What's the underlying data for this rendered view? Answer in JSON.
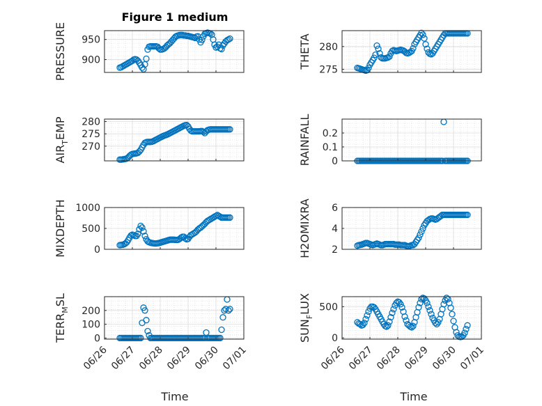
{
  "figure": {
    "title": "Figure 1 medium",
    "xlabel": "Time",
    "marker_color": "#0072BD",
    "x_ticks": [
      "06/26",
      "06/27",
      "06/28",
      "06/29",
      "06/30",
      "07/01"
    ]
  },
  "chart_data": [
    {
      "type": "scatter",
      "title": "Figure 1 medium",
      "ylabel": "PRESSURE",
      "ylim": [
        868,
        972
      ],
      "yticks": [
        900,
        950
      ],
      "xlim": [
        0,
        5
      ],
      "x": [
        0.55,
        0.6,
        0.65,
        0.7,
        0.75,
        0.8,
        0.85,
        0.9,
        0.95,
        1.0,
        1.05,
        1.1,
        1.15,
        1.2,
        1.25,
        1.3,
        1.35,
        1.4,
        1.45,
        1.5,
        1.55,
        1.6,
        1.65,
        1.7,
        1.75,
        1.8,
        1.85,
        1.9,
        1.95,
        2.0,
        2.05,
        2.1,
        2.15,
        2.2,
        2.25,
        2.3,
        2.35,
        2.4,
        2.45,
        2.5,
        2.55,
        2.6,
        2.65,
        2.7,
        2.75,
        2.8,
        2.85,
        2.9,
        2.95,
        3.0,
        3.05,
        3.1,
        3.15,
        3.2,
        3.25,
        3.3,
        3.35,
        3.4,
        3.45,
        3.5,
        3.55,
        3.6,
        3.65,
        3.7,
        3.75,
        3.8,
        3.85,
        3.9,
        3.95,
        4.0,
        4.05,
        4.1,
        4.15,
        4.2,
        4.25,
        4.3,
        4.35,
        4.4,
        4.45,
        4.5
      ],
      "y": [
        880,
        881,
        883,
        885,
        887,
        889,
        891,
        893,
        895,
        897,
        900,
        901,
        900,
        897,
        892,
        886,
        880,
        876,
        888,
        902,
        925,
        932,
        933,
        933,
        933,
        933,
        933,
        932,
        928,
        925,
        925,
        926,
        928,
        931,
        935,
        938,
        941,
        945,
        949,
        953,
        957,
        959,
        960,
        961,
        961,
        961,
        960,
        960,
        959,
        959,
        958,
        957,
        956,
        955,
        954,
        957,
        958,
        950,
        943,
        949,
        958,
        964,
        966,
        967,
        966,
        965,
        962,
        950,
        937,
        930,
        932,
        937,
        928,
        926,
        935,
        940,
        945,
        948,
        950,
        952
      ]
    },
    {
      "type": "scatter",
      "ylabel": "THETA",
      "ylim": [
        274.3,
        283.5
      ],
      "yticks": [
        275,
        280
      ],
      "xlim": [
        0,
        5
      ],
      "x": [
        0.55,
        0.6,
        0.65,
        0.7,
        0.75,
        0.8,
        0.85,
        0.9,
        0.95,
        1.0,
        1.05,
        1.1,
        1.15,
        1.2,
        1.25,
        1.3,
        1.35,
        1.4,
        1.45,
        1.5,
        1.55,
        1.6,
        1.65,
        1.7,
        1.75,
        1.8,
        1.85,
        1.9,
        1.95,
        2.0,
        2.05,
        2.1,
        2.15,
        2.2,
        2.25,
        2.3,
        2.35,
        2.4,
        2.45,
        2.5,
        2.55,
        2.6,
        2.65,
        2.7,
        2.75,
        2.8,
        2.85,
        2.9,
        2.95,
        3.0,
        3.05,
        3.1,
        3.15,
        3.2,
        3.25,
        3.3,
        3.35,
        3.4,
        3.45,
        3.5,
        3.55,
        3.6,
        3.65,
        3.7,
        3.75,
        3.8,
        3.85,
        3.9,
        3.95,
        4.0,
        4.05,
        4.1,
        4.15,
        4.2,
        4.25,
        4.3,
        4.35,
        4.4,
        4.45,
        4.5
      ],
      "y": [
        275.3,
        275.2,
        275.1,
        275.0,
        274.9,
        274.8,
        274.7,
        274.8,
        275.3,
        276.0,
        276.5,
        277.0,
        277.5,
        278.2,
        280.2,
        279.5,
        278.5,
        277.6,
        277.4,
        277.4,
        277.4,
        277.5,
        277.6,
        277.8,
        278.5,
        279.0,
        279.2,
        279.1,
        279.0,
        279.1,
        279.2,
        279.3,
        279.2,
        279.1,
        278.9,
        278.6,
        278.5,
        278.6,
        278.8,
        279.0,
        279.6,
        280.5,
        281.0,
        281.5,
        282.0,
        282.5,
        283.0,
        282.6,
        281.8,
        280.5,
        279.5,
        278.7,
        278.4,
        278.3,
        278.5,
        279.0,
        279.5,
        280.0,
        280.5,
        281.0,
        281.5,
        282.0,
        282.5,
        282.9,
        282.9,
        282.9,
        282.9,
        282.9,
        282.9,
        282.9,
        282.9,
        282.9,
        282.9,
        282.9,
        282.9,
        282.9,
        282.9,
        282.9,
        282.9,
        282.9
      ]
    },
    {
      "type": "scatter",
      "ylabel": "AIR_TEMP",
      "ylabel_main": "AIR",
      "ylabel_sub": "T",
      "ylabel_tail": "EMP",
      "ylim": [
        264,
        281
      ],
      "yticks": [
        270,
        275,
        280
      ],
      "xlim": [
        0,
        5
      ],
      "x": [
        0.55,
        0.6,
        0.65,
        0.7,
        0.75,
        0.8,
        0.85,
        0.9,
        0.95,
        1.0,
        1.05,
        1.1,
        1.15,
        1.2,
        1.25,
        1.3,
        1.35,
        1.4,
        1.45,
        1.5,
        1.55,
        1.6,
        1.65,
        1.7,
        1.75,
        1.8,
        1.85,
        1.9,
        1.95,
        2.0,
        2.05,
        2.1,
        2.15,
        2.2,
        2.25,
        2.3,
        2.35,
        2.4,
        2.45,
        2.5,
        2.55,
        2.6,
        2.65,
        2.7,
        2.75,
        2.8,
        2.85,
        2.9,
        2.95,
        3.0,
        3.05,
        3.1,
        3.15,
        3.2,
        3.25,
        3.3,
        3.35,
        3.4,
        3.45,
        3.5,
        3.55,
        3.6,
        3.65,
        3.7,
        3.75,
        3.8,
        3.85,
        3.9,
        3.95,
        4.0,
        4.05,
        4.1,
        4.15,
        4.2,
        4.25,
        4.3,
        4.35,
        4.4,
        4.45,
        4.5
      ],
      "y": [
        264.5,
        264.5,
        264.6,
        264.7,
        264.8,
        265.0,
        265.4,
        266.0,
        266.5,
        266.8,
        266.9,
        267.0,
        267.1,
        267.3,
        267.8,
        268.5,
        269.5,
        270.5,
        271.3,
        271.6,
        271.7,
        271.7,
        271.7,
        271.8,
        272.0,
        272.3,
        272.6,
        272.9,
        273.2,
        273.5,
        273.8,
        274.1,
        274.3,
        274.5,
        274.7,
        275.0,
        275.3,
        275.6,
        275.9,
        276.2,
        276.5,
        276.8,
        277.1,
        277.4,
        277.7,
        278.0,
        278.3,
        278.5,
        278.6,
        278.0,
        277.0,
        276.3,
        276.0,
        276.0,
        276.0,
        276.0,
        276.0,
        276.0,
        276.1,
        276.1,
        275.8,
        275.3,
        276.0,
        276.5,
        276.7,
        276.8,
        276.8,
        276.8,
        276.8,
        276.8,
        276.8,
        276.8,
        276.8,
        276.8,
        276.8,
        276.8,
        276.8,
        276.8,
        276.8,
        276.8
      ]
    },
    {
      "type": "scatter",
      "ylabel": "RAINFALL",
      "ylim": [
        0,
        0.3
      ],
      "yticks": [
        0,
        0.1,
        0.2
      ],
      "xlim": [
        0,
        5
      ],
      "x": [
        0.55,
        0.6,
        0.65,
        0.7,
        0.75,
        0.8,
        0.85,
        0.9,
        0.95,
        1.0,
        1.05,
        1.1,
        1.15,
        1.2,
        1.25,
        1.3,
        1.35,
        1.4,
        1.45,
        1.5,
        1.55,
        1.6,
        1.65,
        1.7,
        1.75,
        1.8,
        1.85,
        1.9,
        1.95,
        2.0,
        2.05,
        2.1,
        2.15,
        2.2,
        2.25,
        2.3,
        2.35,
        2.4,
        2.45,
        2.5,
        2.55,
        2.6,
        2.65,
        2.7,
        2.75,
        2.8,
        2.85,
        2.9,
        2.95,
        3.0,
        3.05,
        3.1,
        3.15,
        3.2,
        3.25,
        3.3,
        3.35,
        3.4,
        3.45,
        3.5,
        3.55,
        3.6,
        3.65,
        3.7,
        3.75,
        3.8,
        3.85,
        3.9,
        3.95,
        4.0,
        4.05,
        4.1,
        4.15,
        4.2,
        4.25,
        4.3,
        4.35,
        4.4,
        4.45,
        4.5
      ],
      "y": [
        0,
        0,
        0,
        0,
        0,
        0,
        0,
        0,
        0,
        0,
        0,
        0,
        0,
        0,
        0,
        0,
        0,
        0,
        0,
        0,
        0,
        0,
        0,
        0,
        0,
        0,
        0,
        0,
        0,
        0,
        0,
        0,
        0,
        0,
        0,
        0,
        0,
        0,
        0,
        0,
        0,
        0,
        0,
        0,
        0,
        0,
        0,
        0,
        0,
        0,
        0,
        0,
        0,
        0,
        0,
        0,
        0,
        0,
        0,
        0,
        0,
        0,
        0.28,
        0,
        0,
        0,
        0,
        0,
        0,
        0,
        0,
        0,
        0,
        0,
        0,
        0,
        0,
        0,
        0,
        0
      ]
    },
    {
      "type": "scatter",
      "ylabel": "MIXDEPTH",
      "ylim": [
        0,
        1000
      ],
      "yticks": [
        0,
        500,
        1000
      ],
      "xlim": [
        0,
        5
      ],
      "x": [
        0.55,
        0.6,
        0.65,
        0.7,
        0.75,
        0.8,
        0.85,
        0.9,
        0.95,
        1.0,
        1.05,
        1.1,
        1.15,
        1.2,
        1.25,
        1.3,
        1.35,
        1.4,
        1.45,
        1.5,
        1.55,
        1.6,
        1.65,
        1.7,
        1.75,
        1.8,
        1.85,
        1.9,
        1.95,
        2.0,
        2.05,
        2.1,
        2.15,
        2.2,
        2.25,
        2.3,
        2.35,
        2.4,
        2.45,
        2.5,
        2.55,
        2.6,
        2.65,
        2.7,
        2.75,
        2.8,
        2.85,
        2.9,
        2.95,
        3.0,
        3.05,
        3.1,
        3.15,
        3.2,
        3.25,
        3.3,
        3.35,
        3.4,
        3.45,
        3.5,
        3.55,
        3.6,
        3.65,
        3.7,
        3.75,
        3.8,
        3.85,
        3.9,
        3.95,
        4.0,
        4.05,
        4.1,
        4.15,
        4.2,
        4.25,
        4.3,
        4.35,
        4.4,
        4.45,
        4.5
      ],
      "y": [
        100,
        105,
        110,
        120,
        140,
        170,
        220,
        280,
        330,
        350,
        340,
        320,
        320,
        370,
        480,
        560,
        520,
        430,
        320,
        240,
        190,
        170,
        160,
        150,
        145,
        140,
        140,
        145,
        150,
        160,
        170,
        180,
        190,
        200,
        210,
        220,
        230,
        230,
        230,
        230,
        225,
        225,
        230,
        250,
        280,
        300,
        300,
        260,
        240,
        250,
        300,
        340,
        360,
        380,
        400,
        430,
        470,
        500,
        520,
        550,
        580,
        610,
        650,
        680,
        700,
        720,
        740,
        760,
        780,
        800,
        820,
        800,
        780,
        760,
        760,
        760,
        760,
        760,
        760,
        760
      ]
    },
    {
      "type": "scatter",
      "ylabel": "H2OMIXRA",
      "ylim": [
        2,
        6
      ],
      "yticks": [
        2,
        4,
        6
      ],
      "xlim": [
        0,
        5
      ],
      "x": [
        0.55,
        0.6,
        0.65,
        0.7,
        0.75,
        0.8,
        0.85,
        0.9,
        0.95,
        1.0,
        1.05,
        1.1,
        1.15,
        1.2,
        1.25,
        1.3,
        1.35,
        1.4,
        1.45,
        1.5,
        1.55,
        1.6,
        1.65,
        1.7,
        1.75,
        1.8,
        1.85,
        1.9,
        1.95,
        2.0,
        2.05,
        2.1,
        2.15,
        2.2,
        2.25,
        2.3,
        2.35,
        2.4,
        2.45,
        2.5,
        2.55,
        2.6,
        2.65,
        2.7,
        2.75,
        2.8,
        2.85,
        2.9,
        2.95,
        3.0,
        3.05,
        3.1,
        3.15,
        3.2,
        3.25,
        3.3,
        3.35,
        3.4,
        3.45,
        3.5,
        3.55,
        3.6,
        3.65,
        3.7,
        3.75,
        3.8,
        3.85,
        3.9,
        3.95,
        4.0,
        4.05,
        4.1,
        4.15,
        4.2,
        4.25,
        4.3,
        4.35,
        4.4,
        4.45,
        4.5
      ],
      "y": [
        2.35,
        2.4,
        2.42,
        2.45,
        2.5,
        2.55,
        2.6,
        2.6,
        2.55,
        2.5,
        2.45,
        2.4,
        2.45,
        2.5,
        2.55,
        2.5,
        2.45,
        2.4,
        2.4,
        2.45,
        2.5,
        2.5,
        2.5,
        2.5,
        2.5,
        2.5,
        2.5,
        2.45,
        2.45,
        2.45,
        2.45,
        2.4,
        2.4,
        2.4,
        2.4,
        2.35,
        2.3,
        2.3,
        2.35,
        2.4,
        2.4,
        2.5,
        2.7,
        2.9,
        3.1,
        3.4,
        3.7,
        4.0,
        4.3,
        4.5,
        4.7,
        4.8,
        4.9,
        4.95,
        4.95,
        4.9,
        4.85,
        4.9,
        5.0,
        5.1,
        5.2,
        5.3,
        5.3,
        5.3,
        5.3,
        5.3,
        5.3,
        5.3,
        5.3,
        5.3,
        5.3,
        5.3,
        5.3,
        5.3,
        5.3,
        5.3,
        5.3,
        5.3,
        5.3,
        5.3
      ]
    },
    {
      "type": "scatter",
      "ylabel": "TERR_MSL",
      "ylabel_main": "TERR",
      "ylabel_sub": "M",
      "ylabel_tail": "SL",
      "ylim": [
        -8,
        300
      ],
      "yticks": [
        0,
        100,
        200
      ],
      "xlim": [
        0,
        5
      ],
      "x": [
        0.55,
        0.6,
        0.65,
        0.7,
        0.75,
        0.8,
        0.85,
        0.9,
        0.95,
        1.0,
        1.05,
        1.1,
        1.15,
        1.2,
        1.25,
        1.3,
        1.35,
        1.4,
        1.45,
        1.5,
        1.55,
        1.6,
        1.65,
        1.7,
        1.75,
        1.8,
        1.85,
        1.9,
        1.95,
        2.0,
        2.05,
        2.1,
        2.15,
        2.2,
        2.25,
        2.3,
        2.35,
        2.4,
        2.45,
        2.5,
        2.55,
        2.6,
        2.65,
        2.7,
        2.75,
        2.8,
        2.85,
        2.9,
        2.95,
        3.0,
        3.05,
        3.1,
        3.15,
        3.2,
        3.25,
        3.3,
        3.35,
        3.4,
        3.45,
        3.5,
        3.55,
        3.6,
        3.65,
        3.7,
        3.75,
        3.8,
        3.85,
        3.9,
        3.95,
        4.0,
        4.05,
        4.1,
        4.15,
        4.2,
        4.25,
        4.3,
        4.35,
        4.4,
        4.45,
        4.5
      ],
      "y": [
        0,
        0,
        0,
        0,
        0,
        0,
        0,
        0,
        0,
        0,
        0,
        0,
        0,
        0,
        0,
        0,
        110,
        220,
        200,
        130,
        50,
        20,
        0,
        0,
        0,
        0,
        0,
        0,
        0,
        0,
        0,
        0,
        0,
        0,
        0,
        0,
        0,
        0,
        0,
        0,
        0,
        0,
        0,
        0,
        0,
        0,
        0,
        0,
        0,
        0,
        0,
        0,
        0,
        0,
        0,
        0,
        0,
        0,
        0,
        0,
        0,
        0,
        40,
        0,
        0,
        0,
        0,
        0,
        0,
        0,
        0,
        0,
        0,
        60,
        150,
        200,
        210,
        280,
        200,
        210
      ]
    },
    {
      "type": "scatter",
      "ylabel": "SUN_FLUX",
      "ylabel_main": "SUN",
      "ylabel_sub": "F",
      "ylabel_tail": "LUX",
      "ylim": [
        -20,
        660
      ],
      "yticks": [
        0,
        500
      ],
      "xlim": [
        0,
        5
      ],
      "x": [
        0.55,
        0.6,
        0.65,
        0.7,
        0.75,
        0.8,
        0.85,
        0.9,
        0.95,
        1.0,
        1.05,
        1.1,
        1.15,
        1.2,
        1.25,
        1.3,
        1.35,
        1.4,
        1.45,
        1.5,
        1.55,
        1.6,
        1.65,
        1.7,
        1.75,
        1.8,
        1.85,
        1.9,
        1.95,
        2.0,
        2.05,
        2.1,
        2.15,
        2.2,
        2.25,
        2.3,
        2.35,
        2.4,
        2.45,
        2.5,
        2.55,
        2.6,
        2.65,
        2.7,
        2.75,
        2.8,
        2.85,
        2.9,
        2.95,
        3.0,
        3.05,
        3.1,
        3.15,
        3.2,
        3.25,
        3.3,
        3.35,
        3.4,
        3.45,
        3.5,
        3.55,
        3.6,
        3.65,
        3.7,
        3.75,
        3.8,
        3.85,
        3.9,
        3.95,
        4.0,
        4.05,
        4.1,
        4.15,
        4.2,
        4.25,
        4.3,
        4.35,
        4.4,
        4.45,
        4.5
      ],
      "y": [
        250,
        230,
        220,
        200,
        210,
        240,
        300,
        360,
        420,
        470,
        500,
        500,
        490,
        460,
        420,
        380,
        340,
        300,
        260,
        220,
        190,
        180,
        200,
        260,
        330,
        400,
        460,
        520,
        560,
        580,
        570,
        540,
        490,
        420,
        340,
        280,
        220,
        200,
        180,
        170,
        190,
        250,
        330,
        410,
        490,
        560,
        620,
        640,
        630,
        600,
        560,
        500,
        440,
        380,
        320,
        280,
        240,
        220,
        250,
        300,
        380,
        460,
        540,
        600,
        640,
        620,
        560,
        480,
        380,
        270,
        170,
        90,
        40,
        20,
        15,
        20,
        40,
        80,
        140,
        200
      ]
    }
  ]
}
